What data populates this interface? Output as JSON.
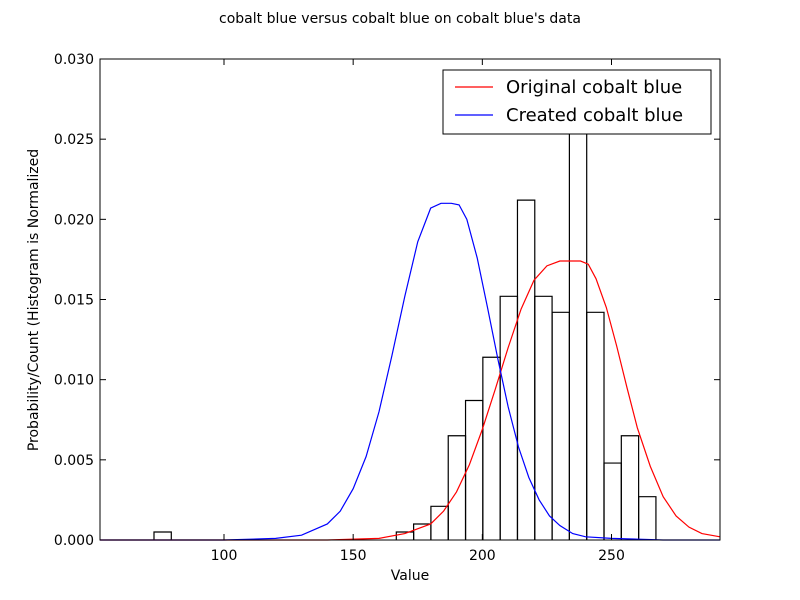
{
  "chart_data": {
    "type": "line",
    "title": "cobalt blue versus cobalt blue on cobalt blue's data",
    "xlabel": "Value",
    "ylabel": "Probability/Count (Histogram is Normalized",
    "xlim": [
      52,
      292
    ],
    "ylim": [
      0,
      0.03
    ],
    "x_ticks": [
      100,
      150,
      200,
      250
    ],
    "x_tick_labels": [
      "100",
      "150",
      "200",
      "250"
    ],
    "y_ticks": [
      0,
      0.005,
      0.01,
      0.015,
      0.02,
      0.025,
      0.03
    ],
    "y_tick_labels": [
      "0.000",
      "0.005",
      "0.010",
      "0.015",
      "0.020",
      "0.025",
      "0.030"
    ],
    "grid": false,
    "legend_position": "upper-right",
    "histogram": {
      "bin_width": 6.7,
      "bins": [
        {
          "x0": 72.9,
          "value": 0.0005
        },
        {
          "x0": 166.7,
          "value": 0.0005
        },
        {
          "x0": 173.4,
          "value": 0.001
        },
        {
          "x0": 180.1,
          "value": 0.0021
        },
        {
          "x0": 186.8,
          "value": 0.0065
        },
        {
          "x0": 193.5,
          "value": 0.0087
        },
        {
          "x0": 200.2,
          "value": 0.0114
        },
        {
          "x0": 206.9,
          "value": 0.0152
        },
        {
          "x0": 213.6,
          "value": 0.0212
        },
        {
          "x0": 220.3,
          "value": 0.0152
        },
        {
          "x0": 227.0,
          "value": 0.0142
        },
        {
          "x0": 233.7,
          "value": 0.0265
        },
        {
          "x0": 240.4,
          "value": 0.0142
        },
        {
          "x0": 247.1,
          "value": 0.0048
        },
        {
          "x0": 253.8,
          "value": 0.0065
        },
        {
          "x0": 260.5,
          "value": 0.0027
        }
      ]
    },
    "series": [
      {
        "name": "Original cobalt blue",
        "color": "#ff0000",
        "points": [
          [
            52,
            0
          ],
          [
            100,
            0
          ],
          [
            140,
            0
          ],
          [
            160,
            0.0001
          ],
          [
            170,
            0.0004
          ],
          [
            180,
            0.001
          ],
          [
            185,
            0.0018
          ],
          [
            190,
            0.003
          ],
          [
            195,
            0.0047
          ],
          [
            200,
            0.0069
          ],
          [
            205,
            0.0094
          ],
          [
            210,
            0.012
          ],
          [
            215,
            0.0144
          ],
          [
            220,
            0.0162
          ],
          [
            225,
            0.0171
          ],
          [
            230,
            0.0174
          ],
          [
            235,
            0.0174
          ],
          [
            238,
            0.0174
          ],
          [
            241,
            0.0172
          ],
          [
            244,
            0.0163
          ],
          [
            248,
            0.0145
          ],
          [
            252,
            0.0121
          ],
          [
            256,
            0.0095
          ],
          [
            260,
            0.007
          ],
          [
            265,
            0.0046
          ],
          [
            270,
            0.0027
          ],
          [
            275,
            0.0015
          ],
          [
            280,
            0.0008
          ],
          [
            285,
            0.0004
          ],
          [
            292,
            0.0002
          ]
        ]
      },
      {
        "name": "Created cobalt blue",
        "color": "#0000ff",
        "points": [
          [
            52,
            0
          ],
          [
            100,
            0
          ],
          [
            120,
            0.0001
          ],
          [
            130,
            0.0003
          ],
          [
            140,
            0.001
          ],
          [
            145,
            0.0018
          ],
          [
            150,
            0.0032
          ],
          [
            155,
            0.0052
          ],
          [
            160,
            0.008
          ],
          [
            165,
            0.0115
          ],
          [
            170,
            0.0152
          ],
          [
            175,
            0.0186
          ],
          [
            180,
            0.0207
          ],
          [
            184,
            0.021
          ],
          [
            188,
            0.021
          ],
          [
            191,
            0.0209
          ],
          [
            194,
            0.02
          ],
          [
            198,
            0.0176
          ],
          [
            202,
            0.0145
          ],
          [
            206,
            0.0113
          ],
          [
            210,
            0.0083
          ],
          [
            214,
            0.0058
          ],
          [
            218,
            0.0039
          ],
          [
            222,
            0.0025
          ],
          [
            226,
            0.0015
          ],
          [
            230,
            0.0009
          ],
          [
            235,
            0.0004
          ],
          [
            240,
            0.0002
          ],
          [
            250,
            0.0001
          ],
          [
            270,
            0
          ],
          [
            292,
            0
          ]
        ]
      }
    ]
  }
}
